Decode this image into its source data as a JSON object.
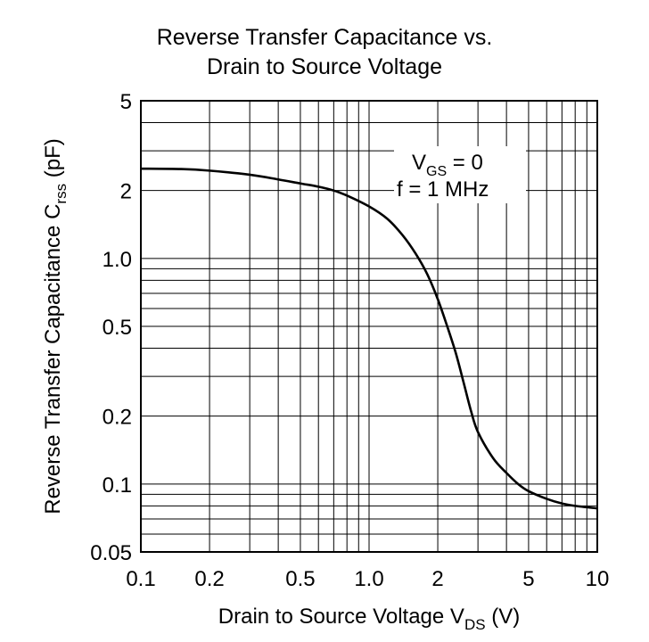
{
  "chart_data": {
    "type": "line",
    "title_lines": [
      "Reverse Transfer Capacitance vs.",
      "Drain to Source Voltage"
    ],
    "xlabel": {
      "main": "Drain to Source Voltage  V",
      "sub": "DS",
      "unit": " (V)"
    },
    "ylabel": {
      "main": "Reverse Transfer Capacitance  C",
      "sub": "rss",
      "unit": "  (pF)"
    },
    "x_scale": "log",
    "y_scale": "log",
    "xlim": [
      0.1,
      10
    ],
    "ylim": [
      0.05,
      5
    ],
    "x_ticks": [
      0.1,
      0.2,
      0.5,
      1.0,
      2,
      5,
      10
    ],
    "x_tick_labels": [
      "0.1",
      "0.2",
      "0.5",
      "1.0",
      "2",
      "5",
      "10"
    ],
    "y_ticks": [
      5,
      2,
      1.0,
      0.5,
      0.2,
      0.1,
      0.05
    ],
    "y_tick_labels": [
      "5",
      "2",
      "1.0",
      "0.5",
      "0.2",
      "0.1",
      "0.05"
    ],
    "grid": true,
    "annotations": [
      {
        "main": "V",
        "sub": "GS",
        "rest": " = 0"
      },
      {
        "main": "f = 1 MHz",
        "sub": "",
        "rest": ""
      }
    ],
    "series": [
      {
        "x": [
          0.1,
          0.15,
          0.2,
          0.3,
          0.4,
          0.5,
          0.6,
          0.7,
          0.8,
          1.0,
          1.2,
          1.4,
          1.6,
          1.8,
          2.0,
          2.2,
          2.4,
          2.6,
          2.8,
          3.0,
          3.5,
          4.0,
          4.5,
          5.0,
          6.0,
          7.0,
          8.0,
          10.0
        ],
        "y": [
          2.5,
          2.49,
          2.45,
          2.35,
          2.24,
          2.15,
          2.08,
          2.0,
          1.9,
          1.7,
          1.5,
          1.27,
          1.05,
          0.85,
          0.66,
          0.5,
          0.38,
          0.28,
          0.21,
          0.17,
          0.13,
          0.112,
          0.1,
          0.093,
          0.086,
          0.082,
          0.08,
          0.078
        ]
      }
    ]
  }
}
